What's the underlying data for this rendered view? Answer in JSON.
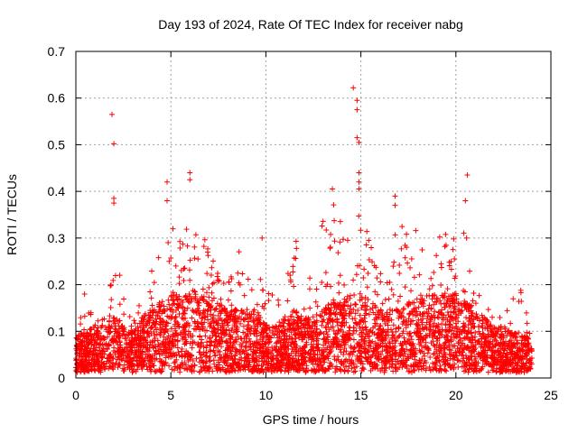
{
  "chart_data": {
    "type": "scatter",
    "title": "Day 193 of 2024, Rate Of TEC Index for receiver nabg",
    "xlabel": "GPS time / hours",
    "ylabel": "ROTI / TECUs",
    "xlim": [
      0,
      25
    ],
    "ylim": [
      0,
      0.7
    ],
    "xticks": [
      "0",
      "5",
      "10",
      "15",
      "20",
      "25"
    ],
    "yticks": [
      "0",
      "0.1",
      "0.2",
      "0.3",
      "0.4",
      "0.5",
      "0.6",
      "0.7"
    ],
    "grid": true,
    "marker": "plus",
    "color": "#ff0000",
    "x_range_of_samples": [
      0,
      24
    ],
    "profile_x": [
      0,
      0.5,
      1,
      1.5,
      2,
      2.5,
      3,
      3.5,
      4,
      4.5,
      5,
      5.5,
      6,
      6.5,
      7,
      7.5,
      8,
      8.5,
      9,
      9.5,
      10,
      10.5,
      11,
      11.5,
      12,
      12.5,
      13,
      13.5,
      14,
      14.5,
      15,
      15.5,
      16,
      16.5,
      17,
      17.5,
      18,
      18.5,
      19,
      19.5,
      20,
      20.5,
      21,
      21.5,
      22,
      22.5,
      23,
      23.5,
      24
    ],
    "profile_typical": [
      0.05,
      0.05,
      0.06,
      0.06,
      0.07,
      0.06,
      0.05,
      0.07,
      0.08,
      0.09,
      0.1,
      0.1,
      0.1,
      0.11,
      0.1,
      0.09,
      0.08,
      0.08,
      0.08,
      0.07,
      0.06,
      0.06,
      0.07,
      0.08,
      0.07,
      0.07,
      0.08,
      0.09,
      0.09,
      0.1,
      0.1,
      0.09,
      0.08,
      0.08,
      0.08,
      0.09,
      0.09,
      0.1,
      0.1,
      0.1,
      0.1,
      0.09,
      0.08,
      0.07,
      0.06,
      0.06,
      0.05,
      0.05,
      0.04
    ],
    "profile_upper": [
      0.09,
      0.19,
      0.14,
      0.13,
      0.26,
      0.2,
      0.12,
      0.18,
      0.24,
      0.31,
      0.35,
      0.3,
      0.35,
      0.33,
      0.3,
      0.22,
      0.2,
      0.28,
      0.26,
      0.22,
      0.2,
      0.19,
      0.22,
      0.35,
      0.22,
      0.25,
      0.37,
      0.4,
      0.36,
      0.33,
      0.36,
      0.3,
      0.27,
      0.28,
      0.38,
      0.3,
      0.33,
      0.28,
      0.3,
      0.35,
      0.3,
      0.32,
      0.2,
      0.16,
      0.14,
      0.13,
      0.17,
      0.2,
      0.07
    ],
    "outliers": [
      {
        "x": 1.9,
        "y": 0.565
      },
      {
        "x": 2.0,
        "y": 0.502
      },
      {
        "x": 2.0,
        "y": 0.385
      },
      {
        "x": 2.0,
        "y": 0.375
      },
      {
        "x": 4.8,
        "y": 0.42
      },
      {
        "x": 4.8,
        "y": 0.38
      },
      {
        "x": 6.0,
        "y": 0.44
      },
      {
        "x": 6.0,
        "y": 0.425
      },
      {
        "x": 9.8,
        "y": 0.3
      },
      {
        "x": 13.5,
        "y": 0.405
      },
      {
        "x": 14.6,
        "y": 0.622
      },
      {
        "x": 14.8,
        "y": 0.595
      },
      {
        "x": 14.8,
        "y": 0.575
      },
      {
        "x": 14.8,
        "y": 0.515
      },
      {
        "x": 14.9,
        "y": 0.505
      },
      {
        "x": 14.9,
        "y": 0.44
      },
      {
        "x": 14.9,
        "y": 0.42
      },
      {
        "x": 14.9,
        "y": 0.405
      },
      {
        "x": 16.8,
        "y": 0.39
      },
      {
        "x": 16.8,
        "y": 0.37
      },
      {
        "x": 20.6,
        "y": 0.435
      },
      {
        "x": 20.5,
        "y": 0.38
      }
    ]
  }
}
